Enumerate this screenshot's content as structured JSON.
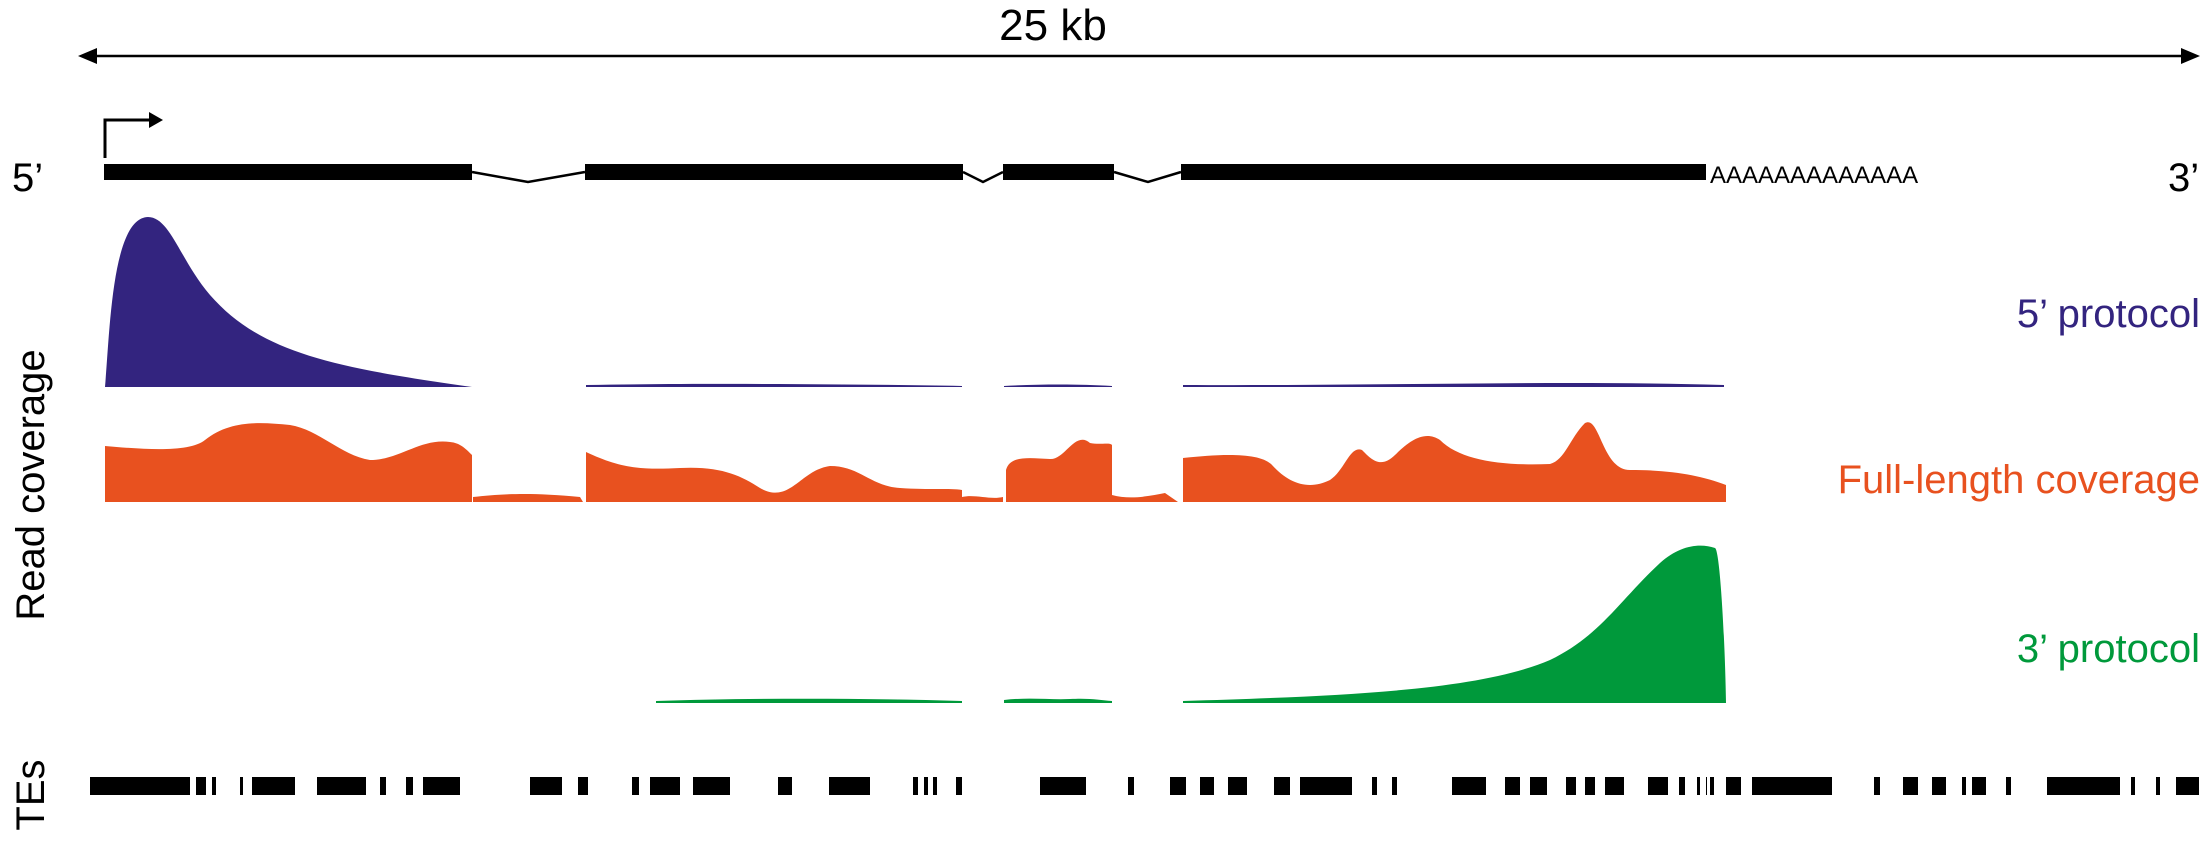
{
  "scale_label": "25 kb",
  "end_labels": {
    "five_prime": "5’",
    "three_prime": "3’"
  },
  "polya_tail": "AAAAAAAAAAAAA",
  "y_axis_label": "Read coverage",
  "te_label": "TEs",
  "tracks": [
    {
      "label": "5’ protocol",
      "color": "#33247f"
    },
    {
      "label": "Full-length coverage",
      "color": "#e8511f"
    },
    {
      "label": "3’ protocol",
      "color": "#00993b"
    }
  ],
  "colors": {
    "gene": "#000000",
    "te": "#000000"
  },
  "icons": [
    "tss-arrow-icon",
    "double-arrow-icon"
  ]
}
